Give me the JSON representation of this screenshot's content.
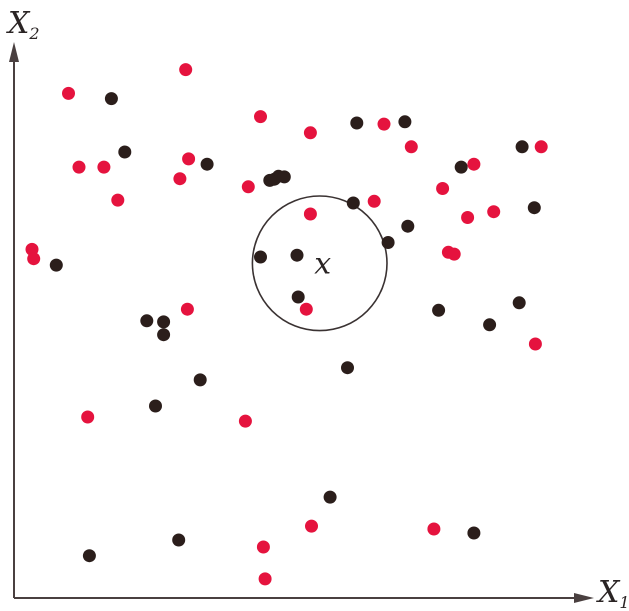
{
  "labels": {
    "y_axis": {
      "main": "X",
      "sub": "2"
    },
    "x_axis": {
      "main": "X",
      "sub": "1"
    },
    "query_point": "x"
  },
  "colors": {
    "class_a": "#e5133e",
    "class_b": "#2b1e1b",
    "axis": "#4a4040",
    "circle": "#3a3232"
  },
  "chart_data": {
    "type": "scatter",
    "title": "",
    "xlabel": "X1",
    "ylabel": "X2",
    "xlim": [
      0,
      100
    ],
    "ylim": [
      0,
      100
    ],
    "grid": false,
    "query": {
      "label": "x",
      "x": 52.7,
      "y": 57.7,
      "radius": 11.6
    },
    "series": [
      {
        "color_key": "class_a",
        "points": [
          [
            29.6,
            91.1
          ],
          [
            9.4,
            87.0
          ],
          [
            42.5,
            83.0
          ],
          [
            51.1,
            80.2
          ],
          [
            63.8,
            81.7
          ],
          [
            68.5,
            77.8
          ],
          [
            11.2,
            74.3
          ],
          [
            15.5,
            74.3
          ],
          [
            30.1,
            75.7
          ],
          [
            17.9,
            68.6
          ],
          [
            28.6,
            72.3
          ],
          [
            40.4,
            70.9
          ],
          [
            79.3,
            74.8
          ],
          [
            90.9,
            77.8
          ],
          [
            73.9,
            70.6
          ],
          [
            62.1,
            68.4
          ],
          [
            82.7,
            66.6
          ],
          [
            78.2,
            65.6
          ],
          [
            51.1,
            66.2
          ],
          [
            3.1,
            60.1
          ],
          [
            3.4,
            58.5
          ],
          [
            74.9,
            59.6
          ],
          [
            75.9,
            59.3
          ],
          [
            29.9,
            49.8
          ],
          [
            50.4,
            49.8
          ],
          [
            89.9,
            43.8
          ],
          [
            12.7,
            31.2
          ],
          [
            39.9,
            30.5
          ],
          [
            51.3,
            12.4
          ],
          [
            72.4,
            11.9
          ],
          [
            43.0,
            8.8
          ],
          [
            43.3,
            3.3
          ]
        ]
      },
      {
        "color_key": "class_b",
        "points": [
          [
            16.8,
            86.1
          ],
          [
            59.1,
            81.9
          ],
          [
            67.4,
            82.1
          ],
          [
            19.1,
            76.9
          ],
          [
            33.3,
            74.8
          ],
          [
            87.6,
            77.8
          ],
          [
            77.1,
            74.3
          ],
          [
            44.9,
            72.2
          ],
          [
            45.6,
            72.7
          ],
          [
            46.6,
            72.6
          ],
          [
            44.1,
            72.0
          ],
          [
            58.5,
            68.1
          ],
          [
            89.7,
            67.3
          ],
          [
            67.9,
            64.1
          ],
          [
            64.5,
            61.3
          ],
          [
            42.5,
            58.8
          ],
          [
            48.8,
            59.1
          ],
          [
            7.3,
            57.4
          ],
          [
            49.0,
            51.9
          ],
          [
            22.9,
            47.8
          ],
          [
            25.8,
            47.6
          ],
          [
            25.8,
            45.4
          ],
          [
            73.2,
            49.6
          ],
          [
            87.1,
            50.9
          ],
          [
            82.0,
            47.1
          ],
          [
            57.5,
            39.7
          ],
          [
            32.1,
            37.6
          ],
          [
            24.4,
            33.1
          ],
          [
            54.5,
            17.4
          ],
          [
            28.4,
            10.0
          ],
          [
            79.3,
            11.2
          ],
          [
            13.0,
            7.3
          ]
        ]
      }
    ]
  }
}
